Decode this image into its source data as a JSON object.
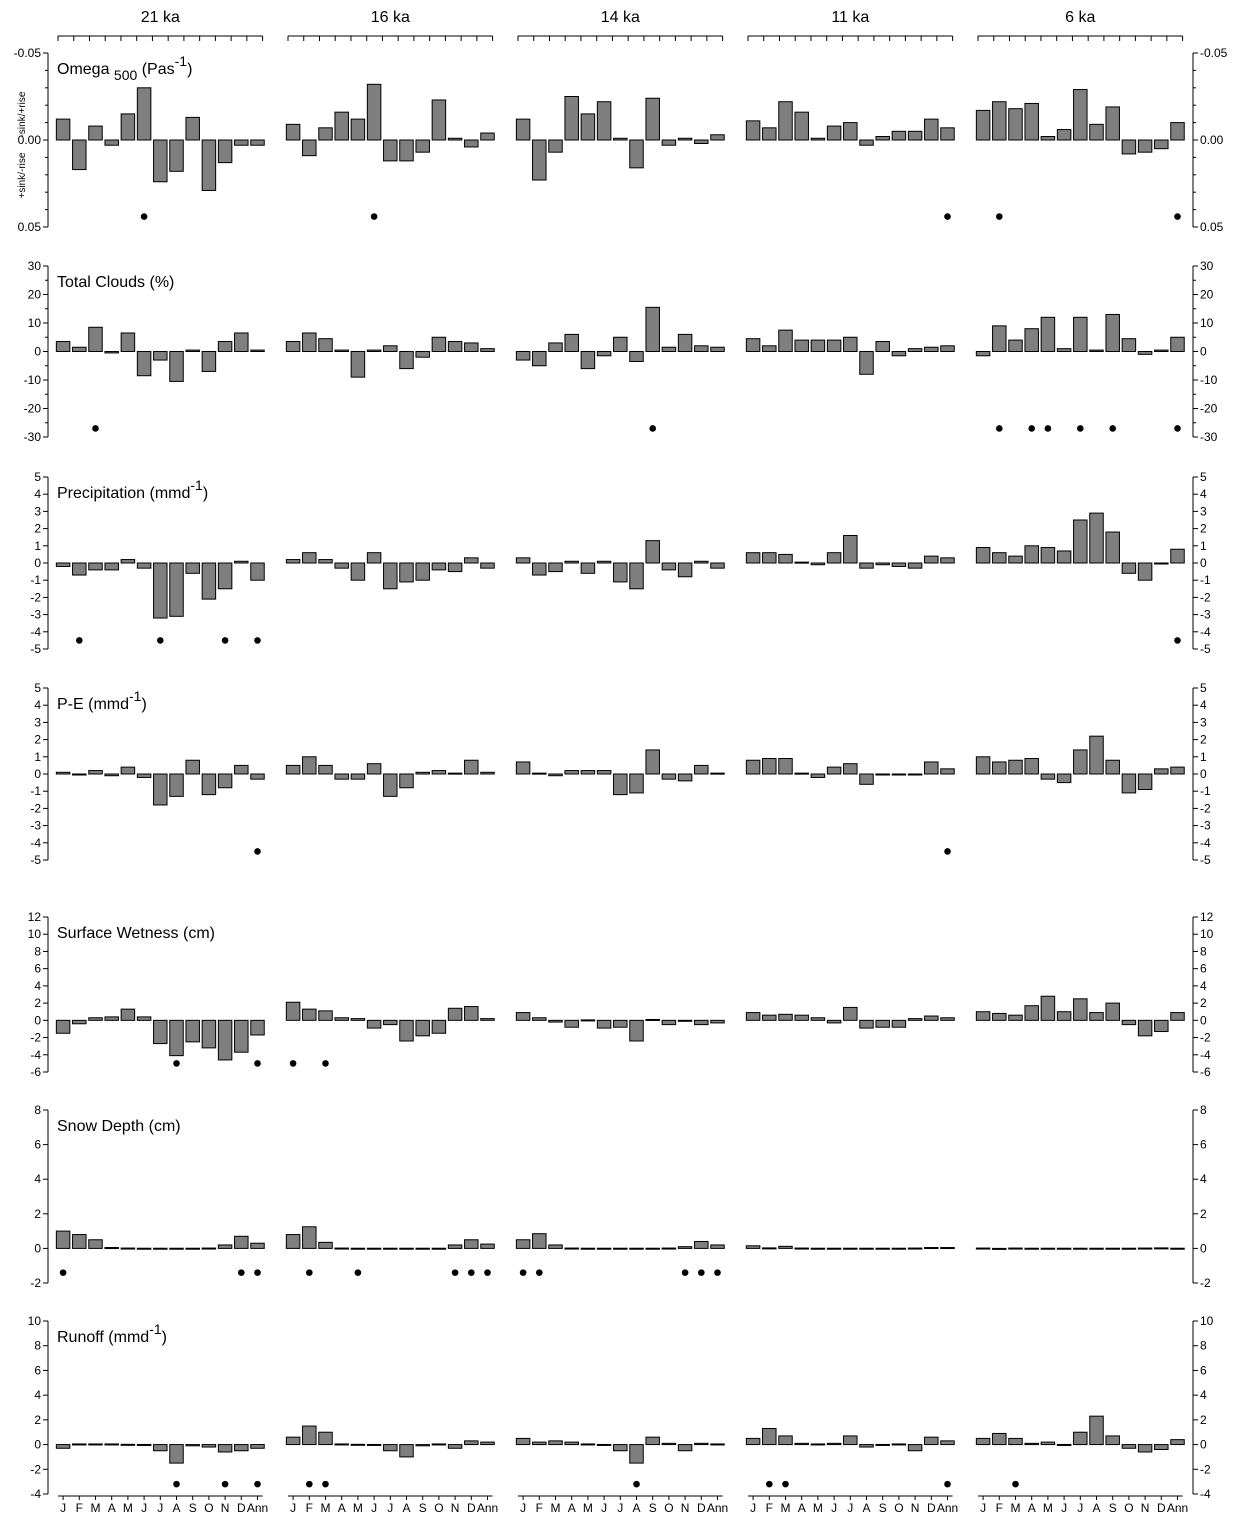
{
  "chart_data": {
    "type": "bar",
    "periods": [
      "21 ka",
      "16 ka",
      "14 ka",
      "11 ka",
      "6 ka"
    ],
    "categories": [
      "J",
      "F",
      "M",
      "A",
      "M",
      "J",
      "J",
      "A",
      "S",
      "O",
      "N",
      "D",
      "Ann"
    ],
    "panels": [
      {
        "key": "omega",
        "title_main": "Omega ",
        "title_sub": "500",
        "title_rest": " (Pas",
        "title_sup": "-1",
        "title_end": ")",
        "ylim": [
          -0.05,
          0.05
        ],
        "inverted": true,
        "ticks": [
          -0.05,
          0.0,
          0.05
        ],
        "tick_labels": [
          "-0.05",
          "0.00",
          "0.05"
        ],
        "minor_step": 0.01,
        "side_label_top": "-sink/+rise",
        "side_label_bottom": "+sink/-rise",
        "dot_value": 0.044,
        "series": [
          {
            "period": "21 ka",
            "values": [
              -0.012,
              0.017,
              -0.008,
              0.003,
              -0.015,
              -0.03,
              0.024,
              0.018,
              -0.013,
              0.029,
              0.013,
              0.003,
              0.003
            ],
            "dots": [
              5
            ]
          },
          {
            "period": "16 ka",
            "values": [
              -0.009,
              0.009,
              -0.007,
              -0.016,
              -0.012,
              -0.032,
              0.012,
              0.012,
              0.007,
              -0.023,
              -0.001,
              0.004,
              -0.004
            ],
            "dots": [
              5
            ]
          },
          {
            "period": "14 ka",
            "values": [
              -0.012,
              0.023,
              0.007,
              -0.025,
              -0.015,
              -0.022,
              -0.001,
              0.016,
              -0.024,
              0.003,
              -0.001,
              0.002,
              -0.003
            ],
            "dots": []
          },
          {
            "period": "11 ka",
            "values": [
              -0.011,
              -0.007,
              -0.022,
              -0.016,
              -0.001,
              -0.008,
              -0.01,
              0.003,
              -0.002,
              -0.005,
              -0.005,
              -0.012,
              -0.007
            ],
            "dots": [
              12
            ]
          },
          {
            "period": "6 ka",
            "values": [
              -0.017,
              -0.022,
              -0.018,
              -0.021,
              -0.002,
              -0.006,
              -0.029,
              -0.009,
              -0.019,
              0.008,
              0.007,
              0.005,
              -0.01
            ],
            "dots": [
              1,
              12
            ]
          }
        ]
      },
      {
        "key": "clouds",
        "title_main": "Total Clouds (%)",
        "title_sub": "",
        "title_rest": "",
        "title_sup": "",
        "title_end": "",
        "ylim": [
          -30,
          30
        ],
        "inverted": false,
        "ticks": [
          -30,
          -20,
          -10,
          0,
          10,
          20,
          30
        ],
        "tick_labels": [
          "-30",
          "-20",
          "-10",
          "0",
          "10",
          "20",
          "30"
        ],
        "minor_step": 5,
        "side_label_top": "",
        "side_label_bottom": "",
        "dot_value": -27,
        "series": [
          {
            "period": "21 ka",
            "values": [
              3.5,
              1.5,
              8.5,
              -0.5,
              6.5,
              -8.5,
              -3,
              -10.5,
              0.5,
              -7,
              3.5,
              6.5,
              0.5
            ],
            "dots": [
              2
            ]
          },
          {
            "period": "16 ka",
            "values": [
              3.5,
              6.5,
              4.5,
              0.5,
              -9,
              0.5,
              2,
              -6,
              -2,
              5,
              3.5,
              3,
              1
            ],
            "dots": []
          },
          {
            "period": "14 ka",
            "values": [
              -3,
              -5,
              3,
              6,
              -6,
              -1.5,
              5,
              -3.5,
              15.5,
              1.5,
              6,
              2,
              1.5
            ],
            "dots": [
              8
            ]
          },
          {
            "period": "11 ka",
            "values": [
              4.5,
              2,
              7.5,
              4,
              4,
              4,
              5,
              -8,
              3.5,
              -1.5,
              1,
              1.5,
              2
            ],
            "dots": []
          },
          {
            "period": "6 ka",
            "values": [
              -1.5,
              9,
              4,
              8,
              12,
              1,
              12,
              0.5,
              13,
              4.5,
              -1,
              0.5,
              5
            ],
            "dots": [
              1,
              3,
              4,
              6,
              8,
              12
            ]
          }
        ]
      },
      {
        "key": "precip",
        "title_main": "Precipitation (mmd",
        "title_sub": "",
        "title_rest": "",
        "title_sup": "-1",
        "title_end": ")",
        "ylim": [
          -5,
          5
        ],
        "inverted": false,
        "ticks": [
          -5,
          -4,
          -3,
          -2,
          -1,
          0,
          1,
          2,
          3,
          4,
          5
        ],
        "tick_labels": [
          "-5",
          "-4",
          "-3",
          "-2",
          "-1",
          "0",
          "1",
          "2",
          "3",
          "4",
          "5"
        ],
        "minor_step": 0,
        "side_label_top": "",
        "side_label_bottom": "",
        "dot_value": -4.5,
        "series": [
          {
            "period": "21 ka",
            "values": [
              -0.2,
              -0.7,
              -0.4,
              -0.4,
              0.2,
              -0.3,
              -3.2,
              -3.1,
              -0.6,
              -2.1,
              -1.5,
              0.1,
              -1
            ],
            "dots": [
              1,
              6,
              10,
              12
            ]
          },
          {
            "period": "16 ka",
            "values": [
              0.2,
              0.6,
              0.2,
              -0.3,
              -1,
              0.6,
              -1.5,
              -1.1,
              -1,
              -0.4,
              -0.5,
              0.3,
              -0.3
            ],
            "dots": []
          },
          {
            "period": "14 ka",
            "values": [
              0.3,
              -0.7,
              -0.5,
              0.1,
              -0.6,
              0.1,
              -1.1,
              -1.5,
              1.3,
              -0.4,
              -0.8,
              0.1,
              -0.3
            ],
            "dots": []
          },
          {
            "period": "11 ka",
            "values": [
              0.6,
              0.6,
              0.5,
              0.05,
              -0.1,
              0.6,
              1.6,
              -0.3,
              -0.1,
              -0.2,
              -0.3,
              0.4,
              0.3
            ],
            "dots": []
          },
          {
            "period": "6 ka",
            "values": [
              0.9,
              0.6,
              0.4,
              1,
              0.9,
              0.7,
              2.5,
              2.9,
              1.8,
              -0.6,
              -1,
              -0.05,
              0.8
            ],
            "dots": [
              12
            ]
          }
        ]
      },
      {
        "key": "pe",
        "title_main": "P-E (mmd",
        "title_sub": "",
        "title_rest": "",
        "title_sup": "-1",
        "title_end": ")",
        "ylim": [
          -5,
          5
        ],
        "inverted": false,
        "ticks": [
          -5,
          -4,
          -3,
          -2,
          -1,
          0,
          1,
          2,
          3,
          4,
          5
        ],
        "tick_labels": [
          "-5",
          "-4",
          "-3",
          "-2",
          "-1",
          "0",
          "1",
          "2",
          "3",
          "4",
          "5"
        ],
        "minor_step": 0,
        "side_label_top": "",
        "side_label_bottom": "",
        "dot_value": -4.5,
        "series": [
          {
            "period": "21 ka",
            "values": [
              0.1,
              -0.05,
              0.2,
              -0.1,
              0.4,
              -0.2,
              -1.8,
              -1.3,
              0.8,
              -1.2,
              -0.8,
              0.5,
              -0.3
            ],
            "dots": [
              12
            ]
          },
          {
            "period": "16 ka",
            "values": [
              0.5,
              1,
              0.5,
              -0.3,
              -0.3,
              0.6,
              -1.3,
              -0.8,
              0.1,
              0.2,
              0.05,
              0.8,
              0.1
            ],
            "dots": []
          },
          {
            "period": "14 ka",
            "values": [
              0.7,
              0.05,
              -0.1,
              0.2,
              0.2,
              0.2,
              -1.2,
              -1.1,
              1.4,
              -0.3,
              -0.4,
              0.5,
              0.05
            ],
            "dots": []
          },
          {
            "period": "11 ka",
            "values": [
              0.8,
              0.9,
              0.9,
              0.05,
              -0.2,
              0.4,
              0.6,
              -0.6,
              -0.05,
              -0.05,
              -0.05,
              0.7,
              0.3
            ],
            "dots": [
              12
            ]
          },
          {
            "period": "6 ka",
            "values": [
              1,
              0.7,
              0.8,
              0.9,
              -0.3,
              -0.5,
              1.4,
              2.2,
              0.8,
              -1.1,
              -0.9,
              0.3,
              0.4
            ],
            "dots": []
          }
        ]
      },
      {
        "key": "wetness",
        "title_main": "Surface Wetness (cm)",
        "title_sub": "",
        "title_rest": "",
        "title_sup": "",
        "title_end": "",
        "ylim": [
          -6,
          12
        ],
        "inverted": false,
        "ticks": [
          -6,
          -4,
          -2,
          0,
          2,
          4,
          6,
          8,
          10,
          12
        ],
        "tick_labels": [
          "-6",
          "-4",
          "-2",
          "0",
          "2",
          "4",
          "6",
          "8",
          "10",
          "12"
        ],
        "minor_step": 0,
        "side_label_top": "",
        "side_label_bottom": "",
        "dot_value": -5,
        "series": [
          {
            "period": "21 ka",
            "values": [
              -1.5,
              -0.4,
              0.3,
              0.4,
              1.3,
              0.4,
              -2.7,
              -4.1,
              -2.5,
              -3.2,
              -4.6,
              -3.7,
              -1.7
            ],
            "dots": [
              7,
              12
            ]
          },
          {
            "period": "16 ka",
            "values": [
              2.1,
              1.3,
              1.1,
              0.3,
              0.2,
              -0.9,
              -0.5,
              -2.4,
              -1.8,
              -1.5,
              1.4,
              1.6,
              0.2
            ],
            "dots": [
              0,
              2
            ]
          },
          {
            "period": "14 ka",
            "values": [
              0.9,
              0.3,
              -0.2,
              -0.8,
              0.05,
              -0.9,
              -0.8,
              -2.4,
              0.1,
              -0.5,
              -0.1,
              -0.5,
              -0.3
            ],
            "dots": []
          },
          {
            "period": "11 ka",
            "values": [
              0.9,
              0.6,
              0.7,
              0.6,
              0.3,
              -0.3,
              1.5,
              -0.9,
              -0.8,
              -0.8,
              0.2,
              0.5,
              0.3
            ],
            "dots": []
          },
          {
            "period": "6 ka",
            "values": [
              1,
              0.8,
              0.6,
              1.7,
              2.8,
              1,
              2.5,
              0.9,
              2,
              -0.5,
              -1.8,
              -1.3,
              0.9
            ],
            "dots": []
          }
        ]
      },
      {
        "key": "snow",
        "title_main": "Snow Depth (cm)",
        "title_sub": "",
        "title_rest": "",
        "title_sup": "",
        "title_end": "",
        "ylim": [
          -2,
          8
        ],
        "inverted": false,
        "ticks": [
          -2,
          0,
          2,
          4,
          6,
          8
        ],
        "tick_labels": [
          "-2",
          "0",
          "2",
          "4",
          "6",
          "8"
        ],
        "minor_step": 0,
        "side_label_top": "",
        "side_label_bottom": "",
        "dot_value": -1.4,
        "series": [
          {
            "period": "21 ka",
            "values": [
              1,
              0.8,
              0.5,
              0.05,
              0.02,
              0.01,
              0.01,
              0.01,
              0.01,
              0.02,
              0.2,
              0.7,
              0.3
            ],
            "dots": [
              0,
              11,
              12
            ]
          },
          {
            "period": "16 ka",
            "values": [
              0.8,
              1.25,
              0.35,
              0.02,
              0.01,
              0.01,
              0.01,
              0.01,
              0.01,
              0.01,
              0.2,
              0.5,
              0.25
            ],
            "dots": [
              1,
              4,
              10,
              11,
              12
            ]
          },
          {
            "period": "14 ka",
            "values": [
              0.5,
              0.85,
              0.2,
              0.02,
              0.01,
              0.01,
              0.01,
              0.01,
              0.01,
              0.02,
              0.1,
              0.4,
              0.2
            ],
            "dots": [
              0,
              1,
              10,
              11,
              12
            ]
          },
          {
            "period": "11 ka",
            "values": [
              0.15,
              0.03,
              0.12,
              0.02,
              0.01,
              0.01,
              0.01,
              0.01,
              0.01,
              0.01,
              0.02,
              0.05,
              0.05
            ],
            "dots": []
          },
          {
            "period": "6 ka",
            "values": [
              0.02,
              -0.05,
              0.02,
              0.01,
              0.01,
              0.01,
              0.01,
              0.01,
              0.01,
              0.01,
              0.02,
              0.03,
              0.01
            ],
            "dots": []
          }
        ]
      },
      {
        "key": "runoff",
        "title_main": "Runoff (mmd",
        "title_sub": "",
        "title_rest": "",
        "title_sup": "-1",
        "title_end": ")",
        "ylim": [
          -4,
          10
        ],
        "inverted": false,
        "ticks": [
          -4,
          -2,
          0,
          2,
          4,
          6,
          8,
          10
        ],
        "tick_labels": [
          "-4",
          "-2",
          "0",
          "2",
          "4",
          "6",
          "8",
          "10"
        ],
        "minor_step": 0,
        "side_label_top": "",
        "side_label_bottom": "",
        "dot_value": -3.2,
        "series": [
          {
            "period": "21 ka",
            "values": [
              -0.3,
              0.05,
              0.05,
              0.05,
              0.02,
              0.01,
              -0.5,
              -1.5,
              -0.1,
              -0.2,
              -0.6,
              -0.5,
              -0.3
            ],
            "dots": [
              7,
              10,
              12
            ]
          },
          {
            "period": "16 ka",
            "values": [
              0.6,
              1.5,
              1,
              0.05,
              0.02,
              0.01,
              -0.5,
              -1,
              -0.1,
              0.05,
              -0.3,
              0.3,
              0.2
            ],
            "dots": [
              1,
              2
            ]
          },
          {
            "period": "14 ka",
            "values": [
              0.5,
              0.2,
              0.3,
              0.2,
              0.05,
              0.01,
              -0.5,
              -1.5,
              0.6,
              0.1,
              -0.5,
              0.1,
              0.05
            ],
            "dots": [
              7
            ]
          },
          {
            "period": "11 ka",
            "values": [
              0.5,
              1.3,
              0.7,
              0.1,
              0.05,
              0.1,
              0.7,
              -0.2,
              0.01,
              0.05,
              -0.5,
              0.6,
              0.3
            ],
            "dots": [
              1,
              2,
              12
            ]
          },
          {
            "period": "6 ka",
            "values": [
              0.5,
              0.9,
              0.5,
              0.1,
              0.2,
              0.01,
              1,
              2.3,
              0.7,
              -0.3,
              -0.6,
              -0.4,
              0.4
            ],
            "dots": [
              2
            ]
          }
        ]
      }
    ]
  }
}
